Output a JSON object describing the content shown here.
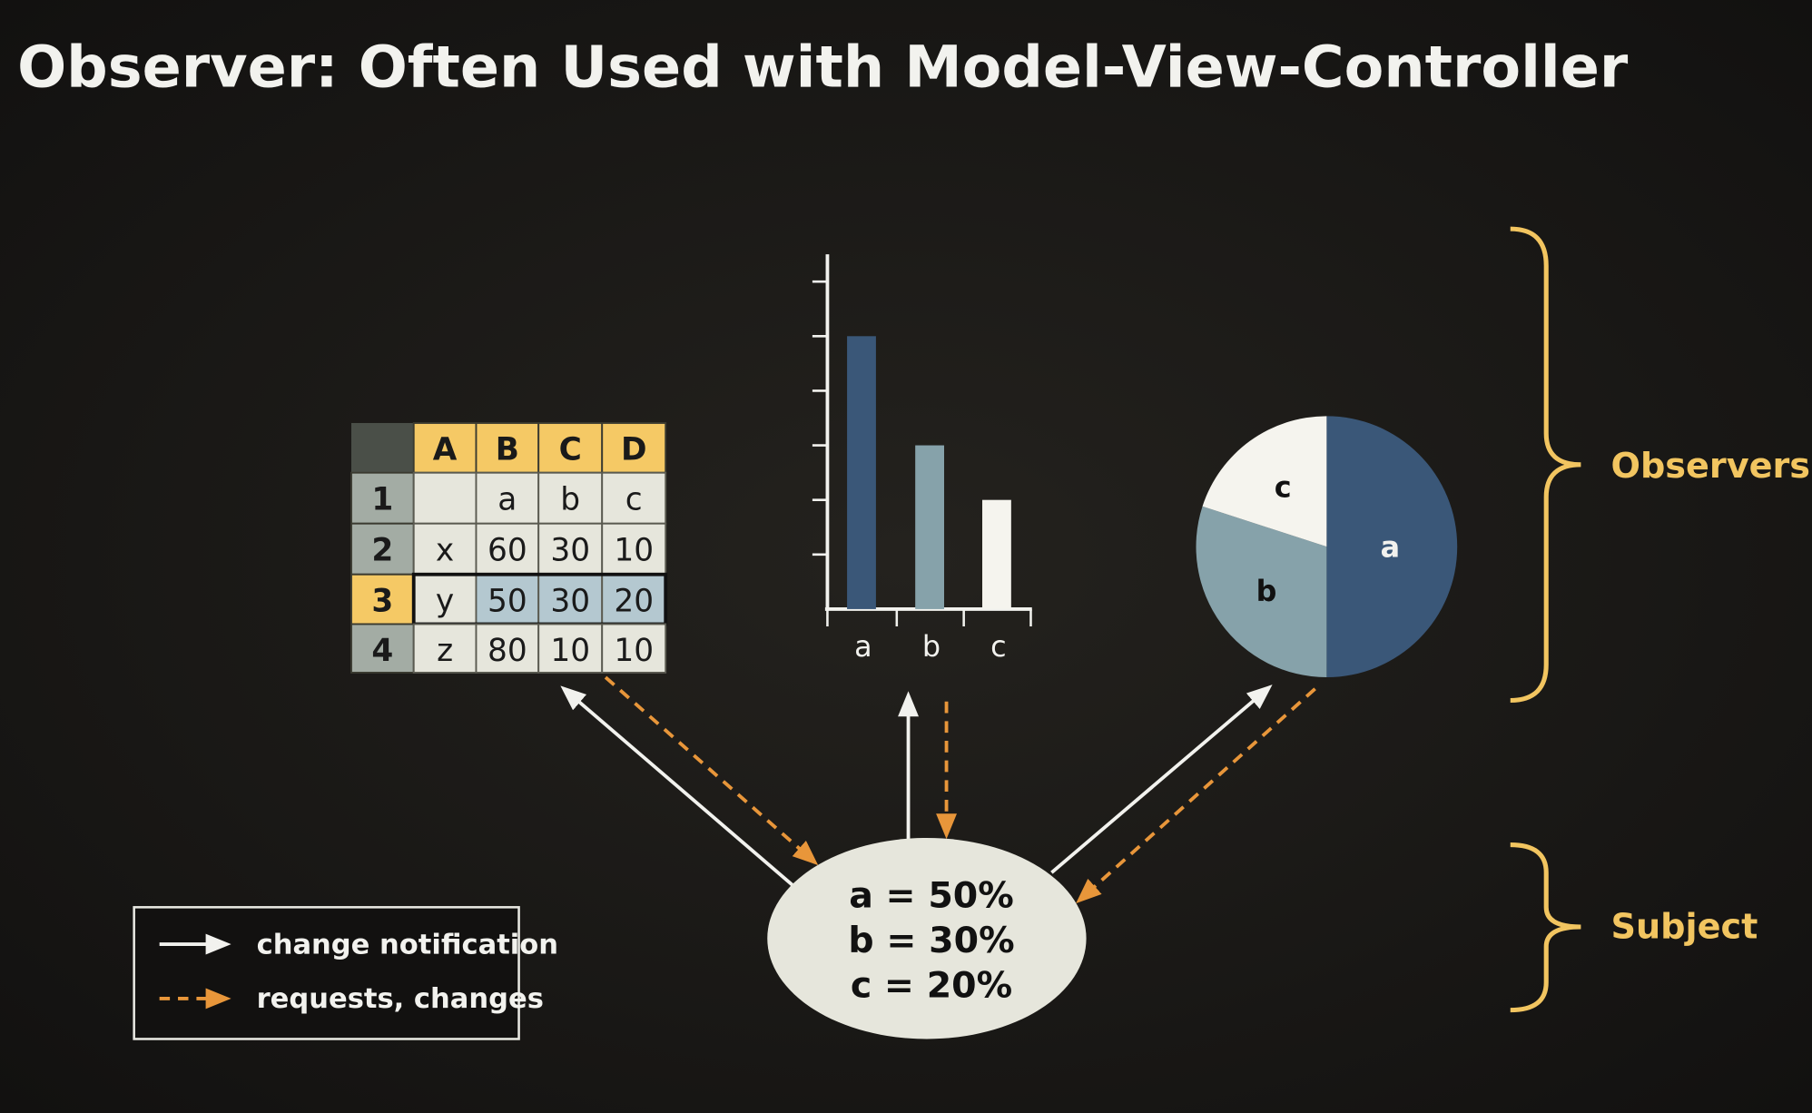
{
  "title": "Observer: Often Used with Model-View-Controller",
  "colors": {
    "a": "#3a5778",
    "b": "#86a2aa",
    "c": "#f5f4ee",
    "accent": "#f2c560",
    "request": "#e8963a",
    "notify": "#f2f2ee"
  },
  "spreadsheet": {
    "columns": [
      "A",
      "B",
      "C",
      "D"
    ],
    "rows": [
      {
        "header": "1",
        "cells": [
          "",
          "a",
          "b",
          "c"
        ]
      },
      {
        "header": "2",
        "cells": [
          "x",
          "60",
          "30",
          "10"
        ]
      },
      {
        "header": "3",
        "cells": [
          "y",
          "50",
          "30",
          "20"
        ],
        "selected": true
      },
      {
        "header": "4",
        "cells": [
          "z",
          "80",
          "10",
          "10"
        ]
      }
    ]
  },
  "chart_data": [
    {
      "type": "bar",
      "categories": [
        "a",
        "b",
        "c"
      ],
      "values": [
        50,
        30,
        20
      ],
      "ylim": [
        0,
        65
      ],
      "ytick_step": 10
    },
    {
      "type": "pie",
      "labels": [
        "a",
        "b",
        "c"
      ],
      "values": [
        50,
        30,
        20
      ]
    }
  ],
  "subject": {
    "lines": [
      "a = 50%",
      "b = 30%",
      "c = 20%"
    ]
  },
  "braces": {
    "observers": "Observers",
    "subject": "Subject"
  },
  "legend": {
    "notify": "change notification",
    "request": "requests, changes"
  }
}
